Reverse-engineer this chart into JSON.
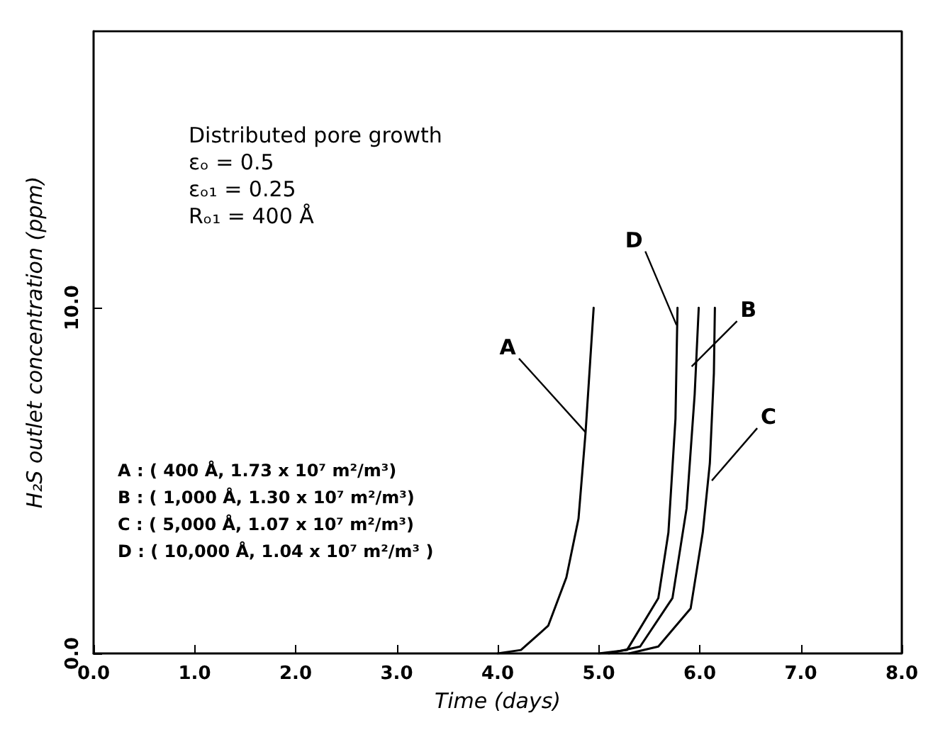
{
  "chart_data": {
    "type": "line",
    "xlabel": "Time (days)",
    "ylabel": "H₂S outlet concentration (ppm)",
    "xlim": [
      0,
      8
    ],
    "ylim": [
      0,
      18
    ],
    "xticks": [
      {
        "value": 0,
        "label": "0.0"
      },
      {
        "value": 1,
        "label": "1.0"
      },
      {
        "value": 2,
        "label": "2.0"
      },
      {
        "value": 3,
        "label": "3.0"
      },
      {
        "value": 4,
        "label": "4.0"
      },
      {
        "value": 5,
        "label": "5.0"
      },
      {
        "value": 6,
        "label": "6.0"
      },
      {
        "value": 7,
        "label": "7.0"
      },
      {
        "value": 8,
        "label": "8.0"
      }
    ],
    "yticks": [
      {
        "value": 0,
        "label": "0.0"
      },
      {
        "value": 10,
        "label": "10.0"
      }
    ],
    "grid": false,
    "marker": "none",
    "line_style": "solid",
    "series": [
      {
        "color": "#000000",
        "x": [
          4.0,
          4.23,
          4.5,
          4.68,
          4.8,
          4.87,
          4.95
        ],
        "values": [
          0,
          0.1,
          0.8,
          2.2,
          3.9,
          6.4,
          10
        ]
      },
      {
        "color": "#000000",
        "x": [
          5.1,
          5.41,
          5.73,
          5.87,
          5.95,
          5.99
        ],
        "values": [
          0,
          0.2,
          1.6,
          4.2,
          7.5,
          10
        ]
      },
      {
        "color": "#000000",
        "x": [
          5.3,
          5.59,
          5.91,
          6.03,
          6.1,
          6.14,
          6.15
        ],
        "values": [
          0,
          0.2,
          1.3,
          3.5,
          5.5,
          8.1,
          10
        ]
      },
      {
        "color": "#000000",
        "x": [
          5.0,
          5.28,
          5.59,
          5.69,
          5.76,
          5.78
        ],
        "values": [
          0,
          0.1,
          1.6,
          3.5,
          6.8,
          10
        ]
      }
    ],
    "annotations": [
      {
        "text": "A",
        "x": 4.87,
        "y": 6.4
      },
      {
        "text": "B",
        "x": 5.92,
        "y": 8.3
      },
      {
        "text": "C",
        "x": 6.12,
        "y": 5.0
      },
      {
        "text": "D",
        "x": 5.77,
        "y": 9.5
      },
      "Distributed pore growth",
      "εₒ = 0.5",
      "εₒ₁ = 0.25",
      "Rₒ₁ = 400 Å",
      "A : ( 400 Å, 1.73 x 10⁷ m²/m³)",
      "B : ( 1,000 Å, 1.30 x 10⁷ m²/m³)",
      "C : ( 5,000 Å, 1.07 x 10⁷ m²/m³)",
      "D : ( 10,000 Å, 1.04 x 10⁷ m²/m³ )"
    ]
  }
}
